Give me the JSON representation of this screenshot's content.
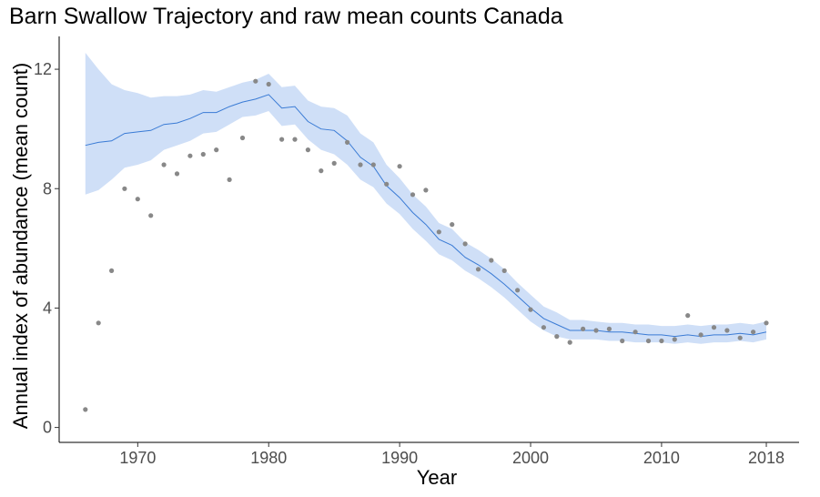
{
  "chart_data": {
    "type": "line",
    "title": "Barn Swallow Trajectory and raw mean counts Canada",
    "xlabel": "Year",
    "ylabel": "Annual index of abundance (mean count)",
    "xlim": [
      1964,
      2020.5
    ],
    "ylim": [
      -0.5,
      13.1
    ],
    "xticks": [
      1970,
      1980,
      1990,
      2000,
      2010,
      2018
    ],
    "yticks": [
      0,
      4,
      8,
      12
    ],
    "grid": false,
    "colors": {
      "line": "#3a7bd5",
      "ribbon": "#cfdff7",
      "points": "#888888",
      "axis": "#000000"
    },
    "series": [
      {
        "kind": "trajectory",
        "x": [
          1966,
          1967,
          1968,
          1969,
          1970,
          1971,
          1972,
          1973,
          1974,
          1975,
          1976,
          1977,
          1978,
          1979,
          1980,
          1981,
          1982,
          1983,
          1984,
          1985,
          1986,
          1987,
          1988,
          1989,
          1990,
          1991,
          1992,
          1993,
          1994,
          1995,
          1996,
          1997,
          1998,
          1999,
          2000,
          2001,
          2002,
          2003,
          2004,
          2005,
          2006,
          2007,
          2008,
          2009,
          2010,
          2011,
          2012,
          2013,
          2014,
          2015,
          2016,
          2017,
          2018
        ],
        "y": [
          9.45,
          9.55,
          9.6,
          9.85,
          9.9,
          9.95,
          10.15,
          10.2,
          10.35,
          10.55,
          10.55,
          10.75,
          10.9,
          11.0,
          11.15,
          10.7,
          10.75,
          10.25,
          10.0,
          9.95,
          9.6,
          9.05,
          8.75,
          8.1,
          7.7,
          7.2,
          6.8,
          6.3,
          6.1,
          5.7,
          5.45,
          5.15,
          4.8,
          4.4,
          4.0,
          3.65,
          3.45,
          3.25,
          3.25,
          3.25,
          3.2,
          3.2,
          3.15,
          3.1,
          3.1,
          3.05,
          3.1,
          3.05,
          3.1,
          3.1,
          3.15,
          3.1,
          3.2
        ],
        "lower": [
          7.8,
          7.95,
          8.3,
          8.7,
          8.8,
          8.95,
          9.3,
          9.45,
          9.6,
          9.85,
          9.9,
          10.15,
          10.4,
          10.45,
          10.6,
          10.1,
          10.15,
          9.65,
          9.3,
          9.15,
          8.8,
          8.3,
          8.05,
          7.5,
          7.15,
          6.65,
          6.25,
          5.8,
          5.6,
          5.25,
          5.0,
          4.7,
          4.35,
          3.95,
          3.55,
          3.25,
          3.05,
          2.95,
          2.95,
          2.95,
          2.9,
          2.9,
          2.85,
          2.85,
          2.85,
          2.8,
          2.85,
          2.8,
          2.85,
          2.85,
          2.9,
          2.85,
          2.95
        ],
        "upper": [
          12.55,
          12.0,
          11.5,
          11.3,
          11.2,
          11.05,
          11.1,
          11.1,
          11.15,
          11.3,
          11.25,
          11.4,
          11.55,
          11.65,
          11.85,
          11.4,
          11.45,
          10.95,
          10.75,
          10.7,
          10.45,
          9.85,
          9.55,
          8.8,
          8.35,
          7.8,
          7.4,
          6.85,
          6.65,
          6.2,
          5.95,
          5.65,
          5.3,
          4.85,
          4.45,
          4.05,
          3.85,
          3.6,
          3.6,
          3.55,
          3.5,
          3.5,
          3.45,
          3.45,
          3.4,
          3.4,
          3.45,
          3.4,
          3.45,
          3.45,
          3.5,
          3.45,
          3.55
        ]
      },
      {
        "kind": "raw_mean_counts",
        "x": [
          1966,
          1967,
          1968,
          1969,
          1970,
          1971,
          1972,
          1973,
          1974,
          1975,
          1976,
          1977,
          1978,
          1979,
          1980,
          1981,
          1982,
          1983,
          1984,
          1985,
          1986,
          1987,
          1988,
          1989,
          1990,
          1991,
          1992,
          1993,
          1994,
          1995,
          1996,
          1997,
          1998,
          1999,
          2000,
          2001,
          2002,
          2003,
          2004,
          2005,
          2006,
          2007,
          2008,
          2009,
          2010,
          2011,
          2012,
          2013,
          2014,
          2015,
          2016,
          2017,
          2018
        ],
        "y": [
          0.6,
          3.5,
          5.25,
          8.0,
          7.65,
          7.1,
          8.8,
          8.5,
          9.1,
          9.15,
          9.3,
          8.3,
          9.7,
          11.6,
          11.5,
          9.65,
          9.65,
          9.3,
          8.6,
          8.85,
          9.55,
          8.8,
          8.8,
          8.15,
          8.75,
          7.8,
          7.95,
          6.55,
          6.8,
          6.15,
          5.3,
          5.6,
          5.25,
          4.6,
          3.95,
          3.35,
          3.05,
          2.85,
          3.3,
          3.25,
          3.3,
          2.9,
          3.2,
          2.9,
          2.9,
          2.95,
          3.75,
          3.1,
          3.35,
          3.25,
          3.0,
          3.2,
          3.5
        ]
      }
    ]
  }
}
